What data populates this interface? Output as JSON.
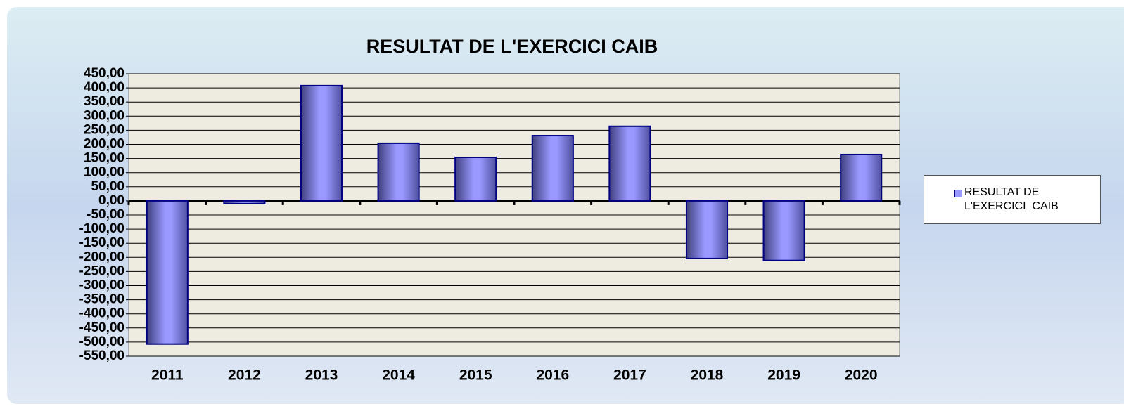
{
  "chart_data": {
    "type": "bar",
    "title": "RESULTAT DE L'EXERCICI  CAIB",
    "categories": [
      "2011",
      "2012",
      "2013",
      "2014",
      "2015",
      "2016",
      "2017",
      "2018",
      "2019",
      "2020"
    ],
    "series": [
      {
        "name": "RESULTAT DE L'EXERCICI  CAIB",
        "color": "#9999ff",
        "values": [
          -507,
          -10,
          408,
          204,
          154,
          231,
          264,
          -204,
          -211,
          164
        ]
      }
    ],
    "ylim": [
      -550,
      450
    ],
    "yticks": [
      {
        "value": -550,
        "label": "-550,00"
      },
      {
        "value": -500,
        "label": "-500,00"
      },
      {
        "value": -450,
        "label": "-450,00"
      },
      {
        "value": -400,
        "label": "-400,00"
      },
      {
        "value": -350,
        "label": "-350,00"
      },
      {
        "value": -300,
        "label": "-300,00"
      },
      {
        "value": -250,
        "label": "-250,00"
      },
      {
        "value": -200,
        "label": "-200,00"
      },
      {
        "value": -150,
        "label": "-150,00"
      },
      {
        "value": -100,
        "label": "-100,00"
      },
      {
        "value": -50,
        "label": "-50,00"
      },
      {
        "value": 0,
        "label": "0,00"
      },
      {
        "value": 50,
        "label": "50,00"
      },
      {
        "value": 100,
        "label": "100,00"
      },
      {
        "value": 150,
        "label": "150,00"
      },
      {
        "value": 200,
        "label": "200,00"
      },
      {
        "value": 250,
        "label": "250,00"
      },
      {
        "value": 300,
        "label": "300,00"
      },
      {
        "value": 350,
        "label": "350,00"
      },
      {
        "value": 400,
        "label": "400,00"
      },
      {
        "value": 450,
        "label": "450,00"
      }
    ],
    "grid": true,
    "legend": "right"
  }
}
